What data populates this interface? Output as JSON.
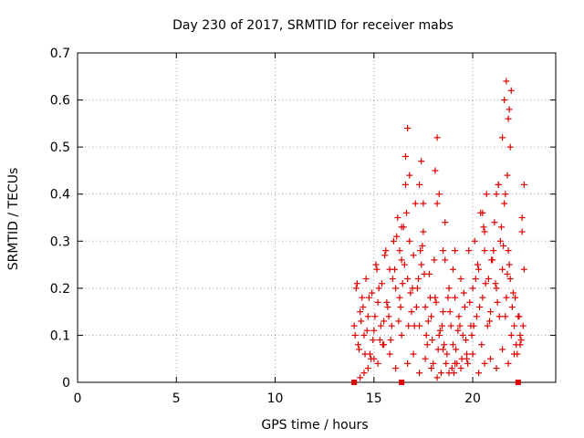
{
  "chart_data": {
    "type": "scatter",
    "title": "Day 230 of 2017, SRMTID for receiver mabs",
    "xlabel": "GPS time / hours",
    "ylabel": "SRMTID / TECUs",
    "xlim": [
      0,
      24.2
    ],
    "ylim": [
      0,
      0.7
    ],
    "xticks": [
      0,
      5,
      10,
      15,
      20
    ],
    "yticks": [
      0,
      0.1,
      0.2,
      0.3,
      0.4,
      0.5,
      0.6,
      0.7
    ],
    "grid": true,
    "marker": "plus",
    "color": "#e00000",
    "gap_markers_x": [
      14.0,
      16.4,
      22.3
    ],
    "series": [
      {
        "x": [
          14.0,
          14.1,
          14.2,
          14.3,
          14.4,
          14.5,
          14.6,
          14.7,
          14.8,
          14.9,
          15.0,
          15.1,
          15.2,
          15.3,
          15.4,
          15.5,
          15.6,
          15.7,
          15.8,
          15.9,
          16.0,
          16.1,
          16.2,
          16.3,
          16.4,
          16.5,
          16.6,
          16.7,
          16.8,
          16.9,
          17.0,
          17.1,
          17.2,
          17.3,
          17.4,
          17.5,
          17.6,
          17.7,
          17.8,
          17.9,
          18.0,
          18.1,
          18.2,
          18.3,
          18.4,
          18.5,
          18.6,
          18.7,
          18.8,
          18.9,
          19.0,
          19.1,
          19.2,
          19.3,
          19.4,
          19.5,
          19.6,
          19.7,
          19.8,
          19.9,
          20.0,
          20.1,
          20.2,
          20.3,
          20.4,
          20.5,
          20.6,
          20.7,
          20.8,
          20.9,
          21.0,
          21.1,
          21.2,
          21.3,
          21.4,
          21.5,
          21.6,
          21.7,
          21.8,
          21.9,
          22.0,
          22.1,
          22.2,
          22.3,
          22.4,
          22.5,
          22.6,
          14.05,
          14.25,
          14.45,
          14.65,
          14.85,
          15.05,
          15.25,
          15.45,
          15.65,
          15.85,
          16.05,
          16.25,
          16.45,
          16.65,
          16.85,
          17.05,
          17.25,
          17.45,
          17.65,
          17.85,
          18.05,
          18.25,
          18.45,
          18.65,
          18.85,
          19.05,
          19.25,
          19.45,
          19.65,
          19.85,
          20.05,
          20.25,
          20.45,
          20.65,
          20.85,
          21.05,
          21.25,
          21.45,
          21.65,
          21.85,
          22.05,
          22.25,
          22.45,
          14.15,
          14.35,
          14.55,
          14.75,
          14.95,
          15.15,
          15.35,
          15.55,
          15.75,
          15.95,
          16.15,
          16.35,
          16.55,
          16.75,
          16.95,
          17.15,
          17.35,
          17.55,
          17.75,
          17.95,
          18.15,
          18.35,
          18.55,
          18.75,
          18.95,
          19.15,
          19.35,
          19.55,
          19.75,
          19.95,
          20.15,
          20.35,
          20.55,
          20.75,
          20.95,
          21.15,
          21.35,
          21.55,
          21.75,
          21.95,
          22.15,
          22.35,
          22.55,
          16.6,
          16.7,
          16.8,
          17.3,
          17.4,
          17.5,
          18.1,
          18.2,
          18.3,
          18.5,
          18.6,
          21.5,
          21.6,
          21.7,
          21.8,
          21.9,
          21.85,
          21.95,
          21.75,
          21.65,
          20.5,
          20.6,
          21.2,
          21.3,
          22.6,
          22.5,
          16.3,
          16.4,
          19.0,
          19.1,
          14.3,
          14.5,
          14.7,
          15.0,
          15.2,
          15.5,
          15.8,
          16.1,
          16.4,
          16.7,
          17.0,
          17.3,
          17.6,
          17.9,
          18.2,
          18.5,
          18.8,
          19.1,
          19.4,
          19.7,
          20.0,
          20.3,
          20.6,
          20.9,
          21.2,
          21.5,
          21.8,
          22.1,
          22.4
        ],
        "y": [
          0.12,
          0.2,
          0.08,
          0.15,
          0.18,
          0.1,
          0.22,
          0.14,
          0.06,
          0.19,
          0.11,
          0.25,
          0.17,
          0.09,
          0.21,
          0.13,
          0.28,
          0.16,
          0.24,
          0.12,
          0.3,
          0.2,
          0.35,
          0.18,
          0.26,
          0.33,
          0.42,
          0.22,
          0.3,
          0.15,
          0.27,
          0.38,
          0.2,
          0.12,
          0.25,
          0.32,
          0.16,
          0.08,
          0.23,
          0.14,
          0.04,
          0.18,
          0.38,
          0.1,
          0.02,
          0.15,
          0.26,
          0.06,
          0.2,
          0.12,
          0.08,
          0.18,
          0.04,
          0.14,
          0.22,
          0.1,
          0.16,
          0.06,
          0.28,
          0.12,
          0.2,
          0.3,
          0.14,
          0.24,
          0.36,
          0.18,
          0.28,
          0.4,
          0.22,
          0.15,
          0.26,
          0.34,
          0.2,
          0.42,
          0.3,
          0.24,
          0.38,
          0.18,
          0.28,
          0.22,
          0.16,
          0.12,
          0.08,
          0.14,
          0.1,
          0.32,
          0.24,
          0.1,
          0.07,
          0.16,
          0.11,
          0.05,
          0.14,
          0.2,
          0.08,
          0.17,
          0.09,
          0.24,
          0.13,
          0.21,
          0.36,
          0.19,
          0.12,
          0.22,
          0.29,
          0.1,
          0.18,
          0.26,
          0.07,
          0.12,
          0.04,
          0.15,
          0.02,
          0.11,
          0.05,
          0.09,
          0.17,
          0.12,
          0.25,
          0.08,
          0.21,
          0.13,
          0.28,
          0.17,
          0.33,
          0.14,
          0.25,
          0.19,
          0.06,
          0.09,
          0.21,
          0.13,
          0.06,
          0.18,
          0.09,
          0.24,
          0.12,
          0.27,
          0.14,
          0.22,
          0.31,
          0.16,
          0.25,
          0.12,
          0.2,
          0.16,
          0.28,
          0.23,
          0.13,
          0.09,
          0.17,
          0.11,
          0.08,
          0.18,
          0.03,
          0.07,
          0.12,
          0.19,
          0.04,
          0.1,
          0.22,
          0.16,
          0.33,
          0.12,
          0.26,
          0.21,
          0.14,
          0.29,
          0.23,
          0.1,
          0.18,
          0.14,
          0.12,
          0.48,
          0.54,
          0.44,
          0.42,
          0.47,
          0.38,
          0.45,
          0.52,
          0.4,
          0.28,
          0.34,
          0.52,
          0.6,
          0.64,
          0.56,
          0.5,
          0.58,
          0.62,
          0.44,
          0.4,
          0.36,
          0.32,
          0.4,
          0.42,
          0.42,
          0.35,
          0.28,
          0.33,
          0.24,
          0.28,
          0.01,
          0.02,
          0.03,
          0.05,
          0.04,
          0.08,
          0.06,
          0.03,
          0.1,
          0.04,
          0.06,
          0.02,
          0.05,
          0.03,
          0.01,
          0.07,
          0.02,
          0.04,
          0.03,
          0.05,
          0.06,
          0.02,
          0.04,
          0.05,
          0.03,
          0.07,
          0.04,
          0.06,
          0.08
        ]
      }
    ]
  }
}
